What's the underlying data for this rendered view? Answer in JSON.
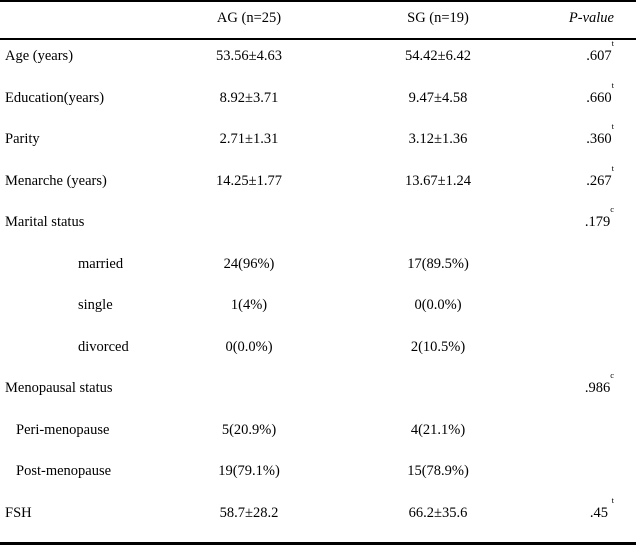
{
  "header": {
    "col_label": "",
    "col_ag": "AG (n=25)",
    "col_sg": "SG (n=19)",
    "col_p": "P-value"
  },
  "rows": [
    {
      "label": "Age (years)",
      "ag": "53.56±4.63",
      "sg": "54.42±6.42",
      "p": ".607",
      "p_sup": "t"
    },
    {
      "label": "Education(years)",
      "ag": "8.92±3.71",
      "sg": "9.47±4.58",
      "p": ".660",
      "p_sup": "t"
    },
    {
      "label": "Parity",
      "ag": "2.71±1.31",
      "sg": "3.12±1.36",
      "p": ".360",
      "p_sup": "t"
    },
    {
      "label": "Menarche (years)",
      "ag": "14.25±1.77",
      "sg": "13.67±1.24",
      "p": ".267",
      "p_sup": "t"
    },
    {
      "label": "Marital status",
      "ag": "",
      "sg": "",
      "p": ".179",
      "p_sup": "c"
    },
    {
      "label": "married",
      "ag": "24(96%)",
      "sg": "17(89.5%)",
      "p": "",
      "p_sup": ""
    },
    {
      "label": "single",
      "ag": "1(4%)",
      "sg": "0(0.0%)",
      "p": "",
      "p_sup": ""
    },
    {
      "label": "divorced",
      "ag": "0(0.0%)",
      "sg": "2(10.5%)",
      "p": "",
      "p_sup": ""
    },
    {
      "label": "Menopausal status",
      "ag": "",
      "sg": "",
      "p": ".986",
      "p_sup": "c"
    },
    {
      "label": "Peri-menopause",
      "ag": "5(20.9%)",
      "sg": "4(21.1%)",
      "p": "",
      "p_sup": ""
    },
    {
      "label": "Post-menopause",
      "ag": "19(79.1%)",
      "sg": "15(78.9%)",
      "p": "",
      "p_sup": ""
    },
    {
      "label": "FSH",
      "ag": "58.7±28.2",
      "sg": "66.2±35.6",
      "p": ".45 ",
      "p_sup": "t"
    }
  ]
}
